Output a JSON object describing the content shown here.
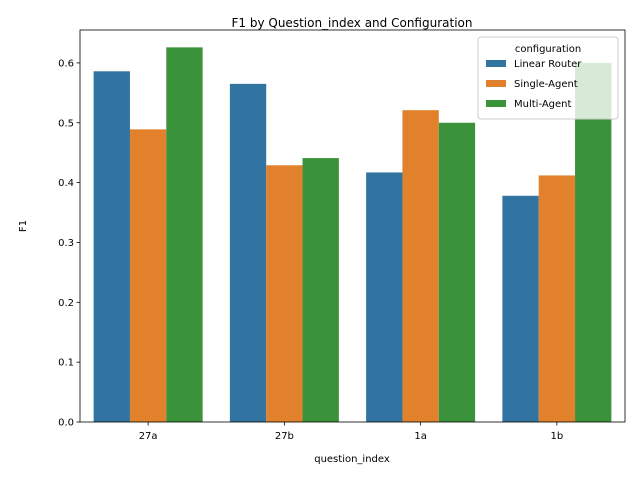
{
  "chart_data": {
    "type": "bar",
    "title": "F1 by Question_index and Configuration",
    "xlabel": "question_index",
    "ylabel": "F1",
    "categories": [
      "27a",
      "27b",
      "1a",
      "1b"
    ],
    "series": [
      {
        "name": "Linear Router",
        "color": "#3274a1",
        "values": [
          0.586,
          0.565,
          0.417,
          0.378
        ]
      },
      {
        "name": "Single-Agent",
        "color": "#e1812c",
        "values": [
          0.489,
          0.429,
          0.521,
          0.412
        ]
      },
      {
        "name": "Multi-Agent",
        "color": "#3a923a",
        "values": [
          0.626,
          0.441,
          0.5,
          0.6
        ]
      }
    ],
    "ylim": [
      0,
      0.655
    ],
    "yticks": [
      0.0,
      0.1,
      0.2,
      0.3,
      0.4,
      0.5,
      0.6
    ],
    "ytick_labels": [
      "0.0",
      "0.1",
      "0.2",
      "0.3",
      "0.4",
      "0.5",
      "0.6"
    ],
    "grid": false,
    "legend": {
      "title": "configuration",
      "placement": "top-right"
    }
  }
}
